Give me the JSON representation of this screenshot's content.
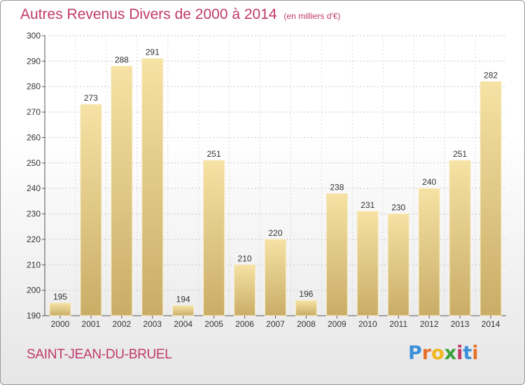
{
  "chart_data": {
    "type": "bar",
    "title": "Autres Revenus Divers de 2000 à 2014",
    "subtitle": "(en milliers d'€)",
    "categories": [
      "2000",
      "2001",
      "2002",
      "2003",
      "2004",
      "2005",
      "2006",
      "2007",
      "2008",
      "2009",
      "2010",
      "2011",
      "2012",
      "2013",
      "2014"
    ],
    "values": [
      195,
      273,
      288,
      291,
      194,
      251,
      210,
      220,
      196,
      238,
      231,
      230,
      240,
      251,
      282
    ],
    "ylim": [
      190,
      300
    ],
    "yticks": [
      190,
      200,
      210,
      220,
      230,
      240,
      250,
      260,
      270,
      280,
      290,
      300
    ],
    "grid": true,
    "bar_color": "#e8cf8a",
    "title_color": "#c0396b"
  },
  "footer": {
    "city": "SAINT-JEAN-DU-BRUEL",
    "logo_text": "Proxiti"
  },
  "colors": {
    "logo_letters": [
      "#3a8fd9",
      "#e8702a",
      "#f2b51a",
      "#3aa13a",
      "#c0396b",
      "#3a8fd9",
      "#e8702a"
    ]
  }
}
